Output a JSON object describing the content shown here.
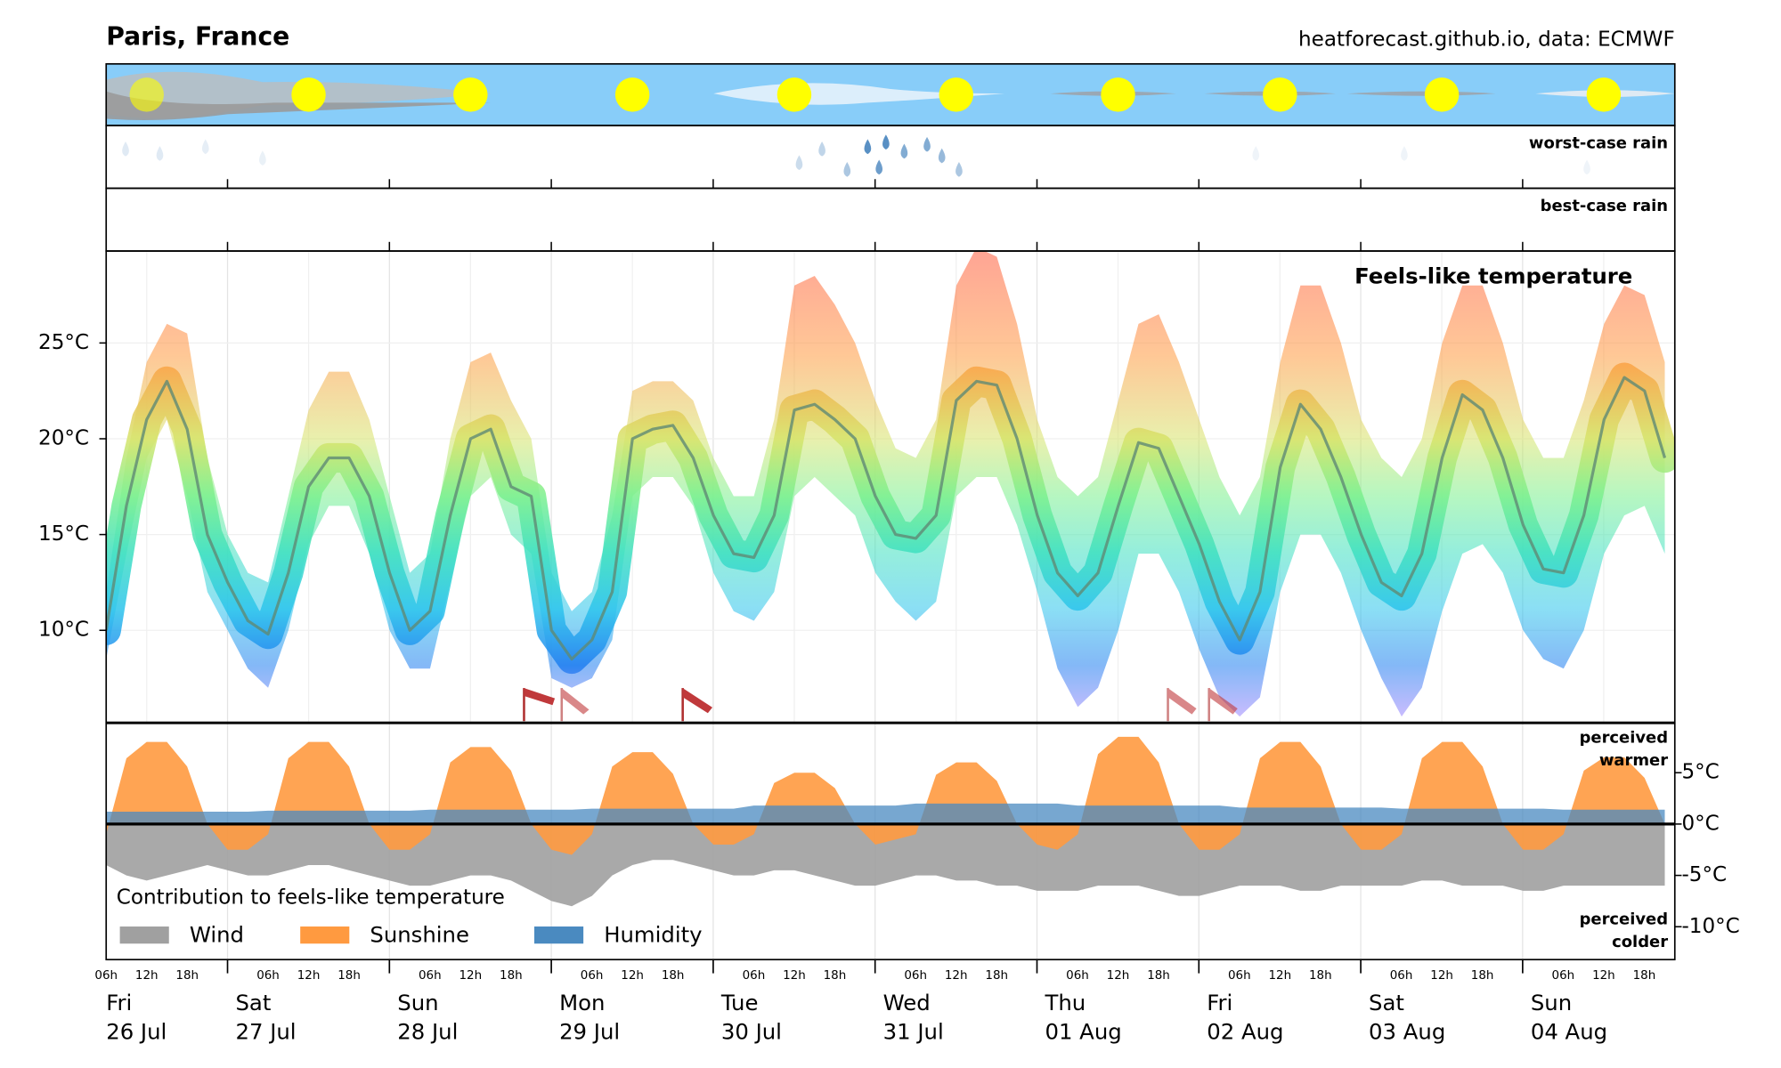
{
  "header": {
    "title": "Paris, France",
    "source": "heatforecast.github.io, data: ECMWF"
  },
  "rain": {
    "worst_label": "worst-case rain",
    "best_label": "best-case rain"
  },
  "x_axis": {
    "hour_labels": [
      "06h",
      "12h",
      "18h"
    ],
    "days": [
      {
        "name": "Fri",
        "date": "26 Jul"
      },
      {
        "name": "Sat",
        "date": "27 Jul"
      },
      {
        "name": "Sun",
        "date": "28 Jul"
      },
      {
        "name": "Mon",
        "date": "29 Jul"
      },
      {
        "name": "Tue",
        "date": "30 Jul"
      },
      {
        "name": "Wed",
        "date": "31 Jul"
      },
      {
        "name": "Thu",
        "date": "01 Aug"
      },
      {
        "name": "Fri",
        "date": "02 Aug"
      },
      {
        "name": "Sat",
        "date": "03 Aug"
      },
      {
        "name": "Sun",
        "date": "04 Aug"
      }
    ]
  },
  "chart_data": [
    {
      "type": "band-line",
      "title": "Feels-like temperature",
      "x": [
        "26 Jul 06h",
        "26 Jul 09h",
        "26 Jul 12h",
        "26 Jul 15h",
        "26 Jul 18h",
        "26 Jul 21h",
        "27 Jul 00h",
        "27 Jul 03h",
        "27 Jul 06h",
        "27 Jul 09h",
        "27 Jul 12h",
        "27 Jul 15h",
        "27 Jul 18h",
        "27 Jul 21h",
        "28 Jul 00h",
        "28 Jul 03h",
        "28 Jul 06h",
        "28 Jul 09h",
        "28 Jul 12h",
        "28 Jul 15h",
        "28 Jul 18h",
        "28 Jul 21h",
        "29 Jul 00h",
        "29 Jul 03h",
        "29 Jul 06h",
        "29 Jul 09h",
        "29 Jul 12h",
        "29 Jul 15h",
        "29 Jul 18h",
        "29 Jul 21h",
        "30 Jul 00h",
        "30 Jul 03h",
        "30 Jul 06h",
        "30 Jul 09h",
        "30 Jul 12h",
        "30 Jul 15h",
        "30 Jul 18h",
        "30 Jul 21h",
        "31 Jul 00h",
        "31 Jul 03h",
        "31 Jul 06h",
        "31 Jul 09h",
        "31 Jul 12h",
        "31 Jul 15h",
        "31 Jul 18h",
        "31 Jul 21h",
        "01 Aug 00h",
        "01 Aug 03h",
        "01 Aug 06h",
        "01 Aug 09h",
        "01 Aug 12h",
        "01 Aug 15h",
        "01 Aug 18h",
        "01 Aug 21h",
        "02 Aug 00h",
        "02 Aug 03h",
        "02 Aug 06h",
        "02 Aug 09h",
        "02 Aug 12h",
        "02 Aug 15h",
        "02 Aug 18h",
        "02 Aug 21h",
        "03 Aug 00h",
        "03 Aug 03h",
        "03 Aug 06h",
        "03 Aug 09h",
        "03 Aug 12h",
        "03 Aug 15h",
        "03 Aug 18h",
        "03 Aug 21h",
        "04 Aug 00h",
        "04 Aug 03h",
        "04 Aug 06h",
        "04 Aug 09h",
        "04 Aug 12h",
        "04 Aug 15h",
        "04 Aug 18h",
        "04 Aug 21h"
      ],
      "values": [
        10,
        16.5,
        21,
        23,
        20.5,
        15,
        12.5,
        10.5,
        9.8,
        13,
        17.5,
        19,
        19,
        17,
        13,
        10,
        11,
        16,
        20,
        20.5,
        17.5,
        17,
        10,
        8.5,
        9.5,
        12,
        20,
        20.5,
        20.7,
        19,
        16,
        14,
        13.8,
        16,
        21.5,
        21.8,
        21,
        20,
        17,
        15,
        14.8,
        16,
        22,
        23,
        22.8,
        20,
        16,
        13,
        11.8,
        13,
        16.5,
        19.8,
        19.5,
        17,
        14.5,
        11.5,
        9.5,
        12,
        18.5,
        21.8,
        20.5,
        18,
        15,
        12.5,
        11.8,
        14,
        19,
        22.3,
        21.5,
        19,
        15.5,
        13.2,
        13,
        16,
        21,
        23.2,
        22.5,
        19
      ],
      "band_low": [
        8.5,
        14,
        19,
        21,
        17,
        12,
        10,
        8,
        7,
        10,
        14.5,
        16.5,
        16.5,
        14,
        10,
        8,
        8,
        12.5,
        17,
        18,
        15,
        14,
        7.5,
        7,
        7.5,
        9.5,
        17,
        18,
        18,
        16.5,
        13,
        11,
        10.5,
        12,
        17,
        18,
        17,
        16,
        13,
        11.5,
        10.5,
        11.5,
        17,
        18,
        18,
        15.5,
        12,
        8,
        6,
        7,
        10,
        14,
        14,
        12,
        9,
        6.5,
        5.5,
        6.5,
        12,
        15,
        15,
        13,
        10,
        7.5,
        5.5,
        7,
        11,
        14,
        14.5,
        13,
        10,
        8.5,
        8,
        10,
        14,
        16,
        16.5,
        14
      ],
      "band_high": [
        12,
        19,
        24,
        26,
        25.5,
        19,
        15,
        13,
        12.5,
        17,
        21.5,
        23.5,
        23.5,
        21,
        17,
        13,
        14,
        20,
        24,
        24.5,
        22,
        20,
        13,
        11,
        12,
        16,
        22.5,
        23,
        23,
        22,
        19,
        17,
        17,
        21,
        28,
        28.5,
        27,
        25,
        22,
        19.5,
        19,
        21,
        28,
        30,
        29.5,
        26,
        21,
        18,
        17,
        18,
        22,
        26,
        26.5,
        24,
        21,
        18,
        16,
        18,
        24,
        28,
        28,
        25,
        21,
        19,
        18,
        20,
        25,
        28,
        28,
        25,
        21,
        19,
        19,
        22,
        26,
        28,
        27.5,
        24
      ],
      "ylim": [
        5.2,
        29.8
      ],
      "yticks": [
        {
          "value": 10,
          "label": "10°C"
        },
        {
          "value": 15,
          "label": "15°C"
        },
        {
          "value": 20,
          "label": "20°C"
        },
        {
          "value": 25,
          "label": "25°C"
        }
      ],
      "grid": true
    },
    {
      "type": "area",
      "title": "Contribution to feels-like temperature",
      "annotations": {
        "warmer": [
          "perceived",
          "warmer"
        ],
        "colder": [
          "perceived",
          "colder"
        ]
      },
      "ylim": [
        -13.2,
        9.8
      ],
      "yticks": [
        {
          "value": 5,
          "label": "5°C"
        },
        {
          "value": 0,
          "label": "0°C"
        },
        {
          "value": -5,
          "label": "-5°C"
        },
        {
          "value": -10,
          "label": "-10°C"
        }
      ],
      "series": [
        {
          "name": "Wind",
          "color": "#a0a0a0",
          "values": [
            -4,
            -5,
            -5.5,
            -5,
            -4.5,
            -4,
            -4.5,
            -5,
            -5,
            -4.5,
            -4,
            -4,
            -4.5,
            -5,
            -5.5,
            -6,
            -6,
            -5.5,
            -5,
            -5,
            -5.5,
            -6.5,
            -7.5,
            -8,
            -7,
            -5,
            -4,
            -3.5,
            -3.5,
            -4,
            -4.5,
            -5,
            -5,
            -4.5,
            -4.5,
            -5,
            -5.5,
            -6,
            -6,
            -5.5,
            -5,
            -5,
            -5.5,
            -5.5,
            -6,
            -6,
            -6.5,
            -6.5,
            -6.5,
            -6,
            -6,
            -6,
            -6.5,
            -7,
            -7,
            -6.5,
            -6,
            -6,
            -6,
            -6.5,
            -6.5,
            -6,
            -6,
            -6,
            -6,
            -5.5,
            -5.5,
            -6,
            -6,
            -6,
            -6.5,
            -6.5,
            -6,
            -6,
            -6,
            -6,
            -6,
            -6
          ]
        },
        {
          "name": "Sunshine",
          "color": "#ff9a40",
          "values": [
            -1,
            6.4,
            8,
            8,
            5.6,
            0,
            -2.5,
            -2.5,
            -1,
            6.4,
            8,
            8,
            5.6,
            0,
            -2.5,
            -2.5,
            -1,
            6,
            7.5,
            7.5,
            5.2,
            0,
            -2.5,
            -3,
            -1,
            5.6,
            7,
            7,
            4.9,
            0,
            -2,
            -2,
            -1,
            4,
            5,
            5,
            3.5,
            0,
            -2,
            -1.5,
            -1,
            4.8,
            6,
            6,
            4.2,
            0,
            -2,
            -2.5,
            -1,
            6.8,
            8.5,
            8.5,
            6,
            0,
            -2.5,
            -2.5,
            -1,
            6.4,
            8,
            8,
            5.6,
            0,
            -2.5,
            -2.5,
            -1,
            6.4,
            8,
            8,
            5.6,
            0,
            -2.5,
            -2.5,
            -1,
            5.2,
            6.5,
            6.5,
            4.5,
            0
          ]
        },
        {
          "name": "Humidity",
          "color": "#4a8ac0",
          "values": [
            1.2,
            1.2,
            1.2,
            1.2,
            1.2,
            1.2,
            1.2,
            1.2,
            1.3,
            1.3,
            1.3,
            1.3,
            1.3,
            1.3,
            1.3,
            1.3,
            1.4,
            1.4,
            1.4,
            1.4,
            1.4,
            1.4,
            1.4,
            1.4,
            1.5,
            1.5,
            1.5,
            1.5,
            1.5,
            1.5,
            1.5,
            1.5,
            1.8,
            1.8,
            1.8,
            1.8,
            1.8,
            1.8,
            1.8,
            1.8,
            2,
            2,
            2,
            2,
            2,
            2,
            2,
            2,
            1.8,
            1.8,
            1.8,
            1.8,
            1.8,
            1.8,
            1.8,
            1.8,
            1.6,
            1.6,
            1.6,
            1.6,
            1.6,
            1.6,
            1.6,
            1.6,
            1.5,
            1.5,
            1.5,
            1.5,
            1.5,
            1.5,
            1.5,
            1.5,
            1.4,
            1.4,
            1.4,
            1.4,
            1.4,
            1.4
          ]
        }
      ]
    }
  ]
}
